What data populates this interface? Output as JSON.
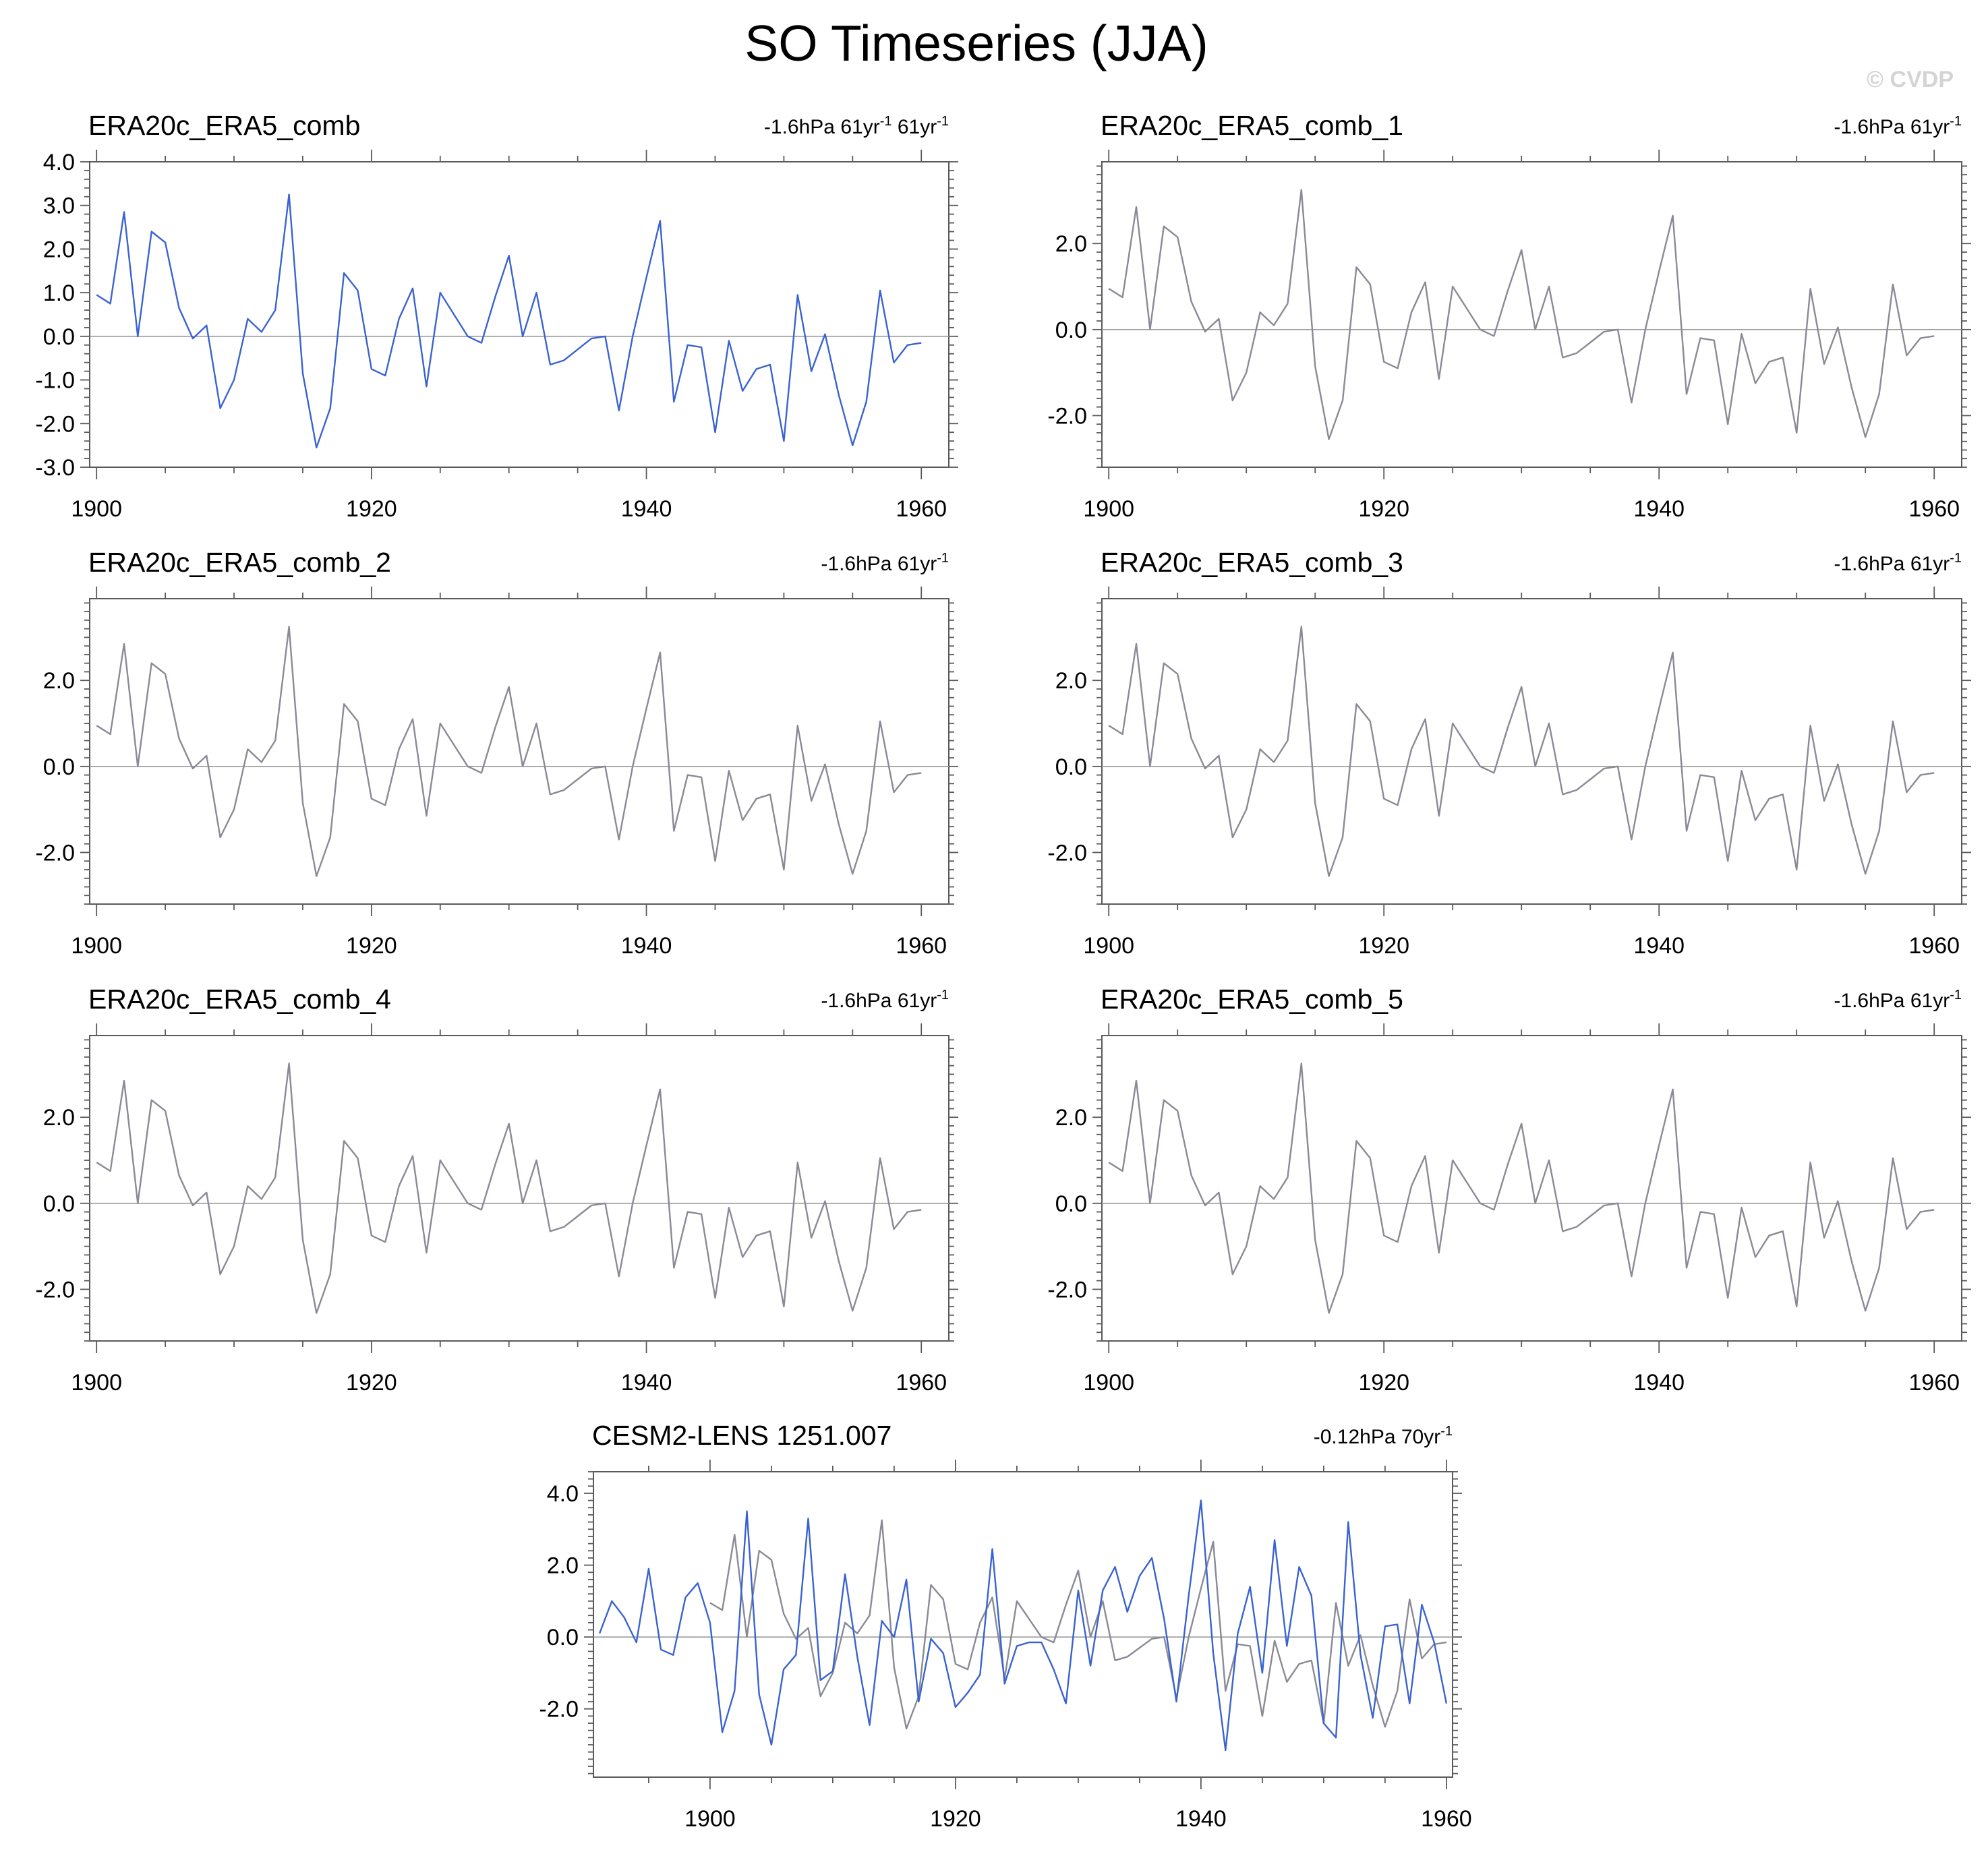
{
  "title": "SO Timeseries (JJA)",
  "watermark": "© CVDP",
  "series_colors": {
    "observations": "#3a63d1",
    "observations_background": "#8a8a96",
    "model": "#3a63d1"
  },
  "chart_data": [
    {
      "type": "line",
      "title": "ERA20c_ERA5_comb",
      "trend_parts": [
        "-1.6hPa 61yr",
        "-1",
        " 61yr",
        "-1"
      ],
      "x": [
        1900,
        1901,
        1902,
        1903,
        1904,
        1905,
        1906,
        1907,
        1908,
        1909,
        1910,
        1911,
        1912,
        1913,
        1914,
        1915,
        1916,
        1917,
        1918,
        1919,
        1920,
        1921,
        1922,
        1923,
        1924,
        1925,
        1926,
        1927,
        1928,
        1929,
        1930,
        1931,
        1932,
        1933,
        1934,
        1935,
        1936,
        1937,
        1938,
        1939,
        1940,
        1941,
        1942,
        1943,
        1944,
        1945,
        1946,
        1947,
        1948,
        1949,
        1950,
        1951,
        1952,
        1953,
        1954,
        1955,
        1956,
        1957,
        1958,
        1959,
        1960
      ],
      "series": [
        {
          "values": [
            0.95,
            0.75,
            2.85,
            0.0,
            2.4,
            2.15,
            0.65,
            -0.05,
            0.25,
            -1.65,
            -1.0,
            0.4,
            0.1,
            0.6,
            3.25,
            -0.85,
            -2.55,
            -1.65,
            1.45,
            1.05,
            -0.75,
            -0.9,
            0.4,
            1.1,
            -1.15,
            1.0,
            0.5,
            0.0,
            -0.15,
            0.9,
            1.85,
            0.0,
            1.0,
            -0.65,
            -0.55,
            -0.3,
            -0.05,
            0.0,
            -1.7,
            0.0,
            1.35,
            2.65,
            -1.5,
            -0.2,
            -0.25,
            -2.2,
            -0.1,
            -1.25,
            -0.75,
            -0.65,
            -2.4,
            0.95,
            -0.8,
            0.05,
            -1.35,
            -2.5,
            -1.5,
            1.05,
            -0.6,
            -0.2,
            -0.15
          ],
          "color_key": "observations"
        }
      ],
      "xlim": [
        1899.5,
        1962
      ],
      "ylim": [
        -3.0,
        4.0
      ],
      "x_ticks": [
        1900,
        1920,
        1940,
        1960
      ],
      "y_ticks": [
        4.0,
        3.0,
        2.0,
        1.0,
        0.0,
        -1.0,
        -2.0,
        -3.0
      ],
      "y_tick_labels": [
        "4.0",
        "3.0",
        "2.0",
        "1.0",
        "0.0",
        "-1.0",
        "-2.0",
        "-3.0"
      ]
    },
    {
      "type": "line",
      "title": "ERA20c_ERA5_comb_1",
      "trend_parts": [
        "-1.6hPa 61yr",
        "-1",
        "",
        ""
      ],
      "x": "same_as_first",
      "series": [
        {
          "values": "same_as_first",
          "color_key": "observations_background"
        }
      ],
      "xlim": [
        1899.5,
        1962
      ],
      "ylim": [
        -3.2,
        3.9
      ],
      "x_ticks": [
        1900,
        1920,
        1940,
        1960
      ],
      "y_ticks": [
        2.0,
        0.0,
        -2.0
      ],
      "y_tick_labels": [
        "2.0",
        "0.0",
        "-2.0"
      ]
    },
    {
      "type": "line",
      "title": "ERA20c_ERA5_comb_2",
      "trend_parts": [
        "-1.6hPa 61yr",
        "-1",
        "",
        ""
      ],
      "x": "same_as_first",
      "series": [
        {
          "values": "same_as_first",
          "color_key": "observations_background"
        }
      ],
      "xlim": [
        1899.5,
        1962
      ],
      "ylim": [
        -3.2,
        3.9
      ],
      "x_ticks": [
        1900,
        1920,
        1940,
        1960
      ],
      "y_ticks": [
        2.0,
        0.0,
        -2.0
      ],
      "y_tick_labels": [
        "2.0",
        "0.0",
        "-2.0"
      ]
    },
    {
      "type": "line",
      "title": "ERA20c_ERA5_comb_3",
      "trend_parts": [
        "-1.6hPa 61yr",
        "-1",
        "",
        ""
      ],
      "x": "same_as_first",
      "series": [
        {
          "values": "same_as_first",
          "color_key": "observations_background"
        }
      ],
      "xlim": [
        1899.5,
        1962
      ],
      "ylim": [
        -3.2,
        3.9
      ],
      "x_ticks": [
        1900,
        1920,
        1940,
        1960
      ],
      "y_ticks": [
        2.0,
        0.0,
        -2.0
      ],
      "y_tick_labels": [
        "2.0",
        "0.0",
        "-2.0"
      ]
    },
    {
      "type": "line",
      "title": "ERA20c_ERA5_comb_4",
      "trend_parts": [
        "-1.6hPa 61yr",
        "-1",
        "",
        ""
      ],
      "x": "same_as_first",
      "series": [
        {
          "values": "same_as_first",
          "color_key": "observations_background"
        }
      ],
      "xlim": [
        1899.5,
        1962
      ],
      "ylim": [
        -3.2,
        3.9
      ],
      "x_ticks": [
        1900,
        1920,
        1940,
        1960
      ],
      "y_ticks": [
        2.0,
        0.0,
        -2.0
      ],
      "y_tick_labels": [
        "2.0",
        "0.0",
        "-2.0"
      ]
    },
    {
      "type": "line",
      "title": "ERA20c_ERA5_comb_5",
      "trend_parts": [
        "-1.6hPa 61yr",
        "-1",
        "",
        ""
      ],
      "x": "same_as_first",
      "series": [
        {
          "values": "same_as_first",
          "color_key": "observations_background"
        }
      ],
      "xlim": [
        1899.5,
        1962
      ],
      "ylim": [
        -3.2,
        3.9
      ],
      "x_ticks": [
        1900,
        1920,
        1940,
        1960
      ],
      "y_ticks": [
        2.0,
        0.0,
        -2.0
      ],
      "y_tick_labels": [
        "2.0",
        "0.0",
        "-2.0"
      ]
    },
    {
      "type": "line",
      "title": "CESM2-LENS 1251.007",
      "trend_parts": [
        "-0.12hPa 70yr",
        "-1",
        "",
        ""
      ],
      "series": [
        {
          "x": "same_as_first",
          "values": "same_as_first",
          "color_key": "observations_background"
        },
        {
          "x": [
            1891,
            1892,
            1893,
            1894,
            1895,
            1896,
            1897,
            1898,
            1899,
            1900,
            1901,
            1902,
            1903,
            1904,
            1905,
            1906,
            1907,
            1908,
            1909,
            1910,
            1911,
            1912,
            1913,
            1914,
            1915,
            1916,
            1917,
            1918,
            1919,
            1920,
            1921,
            1922,
            1923,
            1924,
            1925,
            1926,
            1927,
            1928,
            1929,
            1930,
            1931,
            1932,
            1933,
            1934,
            1935,
            1936,
            1937,
            1938,
            1939,
            1940,
            1941,
            1942,
            1943,
            1944,
            1945,
            1946,
            1947,
            1948,
            1949,
            1950,
            1951,
            1952,
            1953,
            1954,
            1955,
            1956,
            1957,
            1958,
            1959,
            1960
          ],
          "values": [
            0.1,
            1.0,
            0.55,
            -0.15,
            1.9,
            -0.35,
            -0.5,
            1.1,
            1.5,
            0.4,
            -2.65,
            -1.5,
            3.5,
            -1.6,
            -3.0,
            -0.9,
            -0.5,
            3.3,
            -1.2,
            -0.95,
            1.75,
            -0.55,
            -2.45,
            0.45,
            0.0,
            1.6,
            -1.8,
            -0.05,
            -0.45,
            -1.95,
            -1.55,
            -1.05,
            2.45,
            -1.3,
            -0.25,
            -0.15,
            -0.15,
            -0.9,
            -1.85,
            1.3,
            -0.8,
            1.3,
            1.95,
            0.7,
            1.7,
            2.2,
            0.5,
            -1.8,
            1.15,
            3.8,
            -0.45,
            -3.15,
            0.1,
            1.4,
            -1.0,
            2.7,
            -0.25,
            1.95,
            1.15,
            -2.4,
            -2.8,
            3.2,
            -0.5,
            -2.25,
            0.3,
            0.35,
            -1.85,
            0.9,
            -0.15,
            -1.85
          ],
          "color_key": "model"
        }
      ],
      "xlim": [
        1890.5,
        1960.5
      ],
      "ylim": [
        -3.9,
        4.6
      ],
      "x_ticks": [
        1900,
        1920,
        1940,
        1960
      ],
      "y_ticks": [
        4.0,
        2.0,
        0.0,
        -2.0
      ],
      "y_tick_labels": [
        "4.0",
        "2.0",
        "0.0",
        "-2.0"
      ]
    }
  ]
}
